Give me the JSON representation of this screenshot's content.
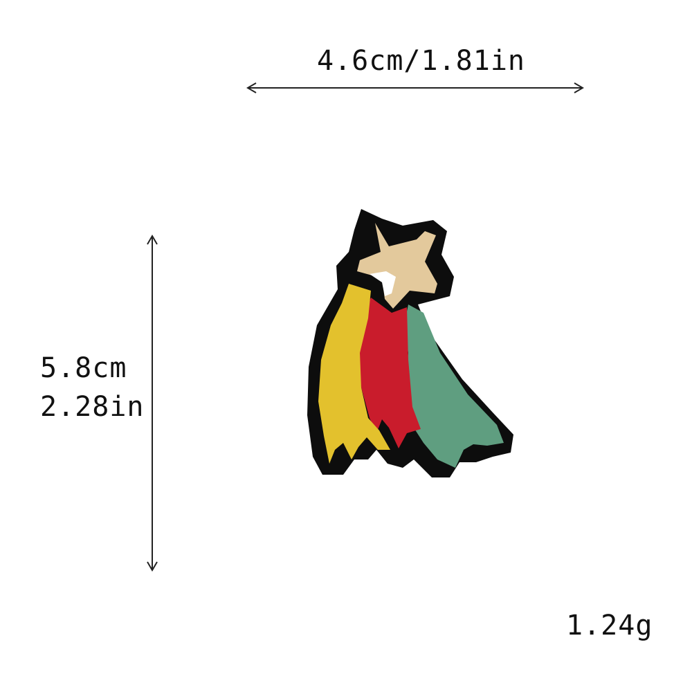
{
  "dimensions": {
    "width_label": "4.6cm/1.81in",
    "height_cm": "5.8cm",
    "height_in": "2.28in"
  },
  "weight": "1.24g",
  "patch": {
    "colors": {
      "outline": "#0d0d0d",
      "star": "#e3c99c",
      "yellow": "#e3c12d",
      "red": "#c91c2c",
      "green": "#5f9e80",
      "highlight": "#ffffff"
    }
  }
}
